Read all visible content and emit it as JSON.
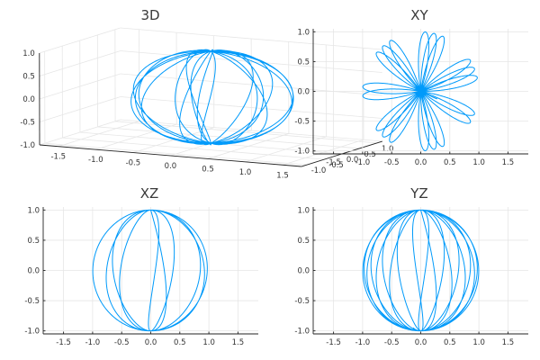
{
  "chart_data": [
    {
      "type": "line",
      "title": "3D",
      "xlabel": "",
      "ylabel": "",
      "zlabel": "",
      "xlim": [
        -1.75,
        1.75
      ],
      "ylim": [
        -1.15,
        1.15
      ],
      "zlim": [
        -1.0,
        1.0
      ],
      "x_ticks": [
        "-1.5",
        "-1.0",
        "-0.5",
        "0.0",
        "0.5",
        "1.0",
        "1.5"
      ],
      "y_ticks": [
        "-1.0",
        "-0.5",
        "0.0",
        "0.5",
        "1.0"
      ],
      "z_ticks": [
        "-1.0",
        "-0.5",
        "0.0",
        "0.5",
        "1.0"
      ],
      "grid": true,
      "legend": "none",
      "color": "#009AFA",
      "curve": "x = sin(t)·cos(3t/20), y = sin(t)·sin(3t/20), z = cos(t), t in [0, 60]"
    },
    {
      "type": "line",
      "title": "XY",
      "xlabel": "",
      "ylabel": "",
      "xlim": [
        -1.85,
        1.85
      ],
      "ylim": [
        -1.05,
        1.05
      ],
      "x_ticks": [
        "-1.5",
        "-1.0",
        "-0.5",
        "0.0",
        "0.5",
        "1.0",
        "1.5"
      ],
      "y_ticks": [
        "-1.0",
        "-0.5",
        "0.0",
        "0.5",
        "1.0"
      ],
      "grid": true,
      "legend": "none",
      "color": "#009AFA",
      "projection": "x vs y"
    },
    {
      "type": "line",
      "title": "XZ",
      "xlabel": "",
      "ylabel": "",
      "xlim": [
        -1.85,
        1.85
      ],
      "ylim": [
        -1.05,
        1.05
      ],
      "x_ticks": [
        "-1.5",
        "-1.0",
        "-0.5",
        "0.0",
        "0.5",
        "1.0",
        "1.5"
      ],
      "y_ticks": [
        "-1.0",
        "-0.5",
        "0.0",
        "0.5",
        "1.0"
      ],
      "grid": true,
      "legend": "none",
      "color": "#009AFA",
      "projection": "x vs z"
    },
    {
      "type": "line",
      "title": "YZ",
      "xlabel": "",
      "ylabel": "",
      "xlim": [
        -1.85,
        1.85
      ],
      "ylim": [
        -1.05,
        1.05
      ],
      "x_ticks": [
        "-1.5",
        "-1.0",
        "-0.5",
        "0.0",
        "0.5",
        "1.0",
        "1.5"
      ],
      "y_ticks": [
        "-1.0",
        "-0.5",
        "0.0",
        "0.5",
        "1.0"
      ],
      "grid": true,
      "legend": "none",
      "color": "#009AFA",
      "projection": "y vs z"
    }
  ]
}
